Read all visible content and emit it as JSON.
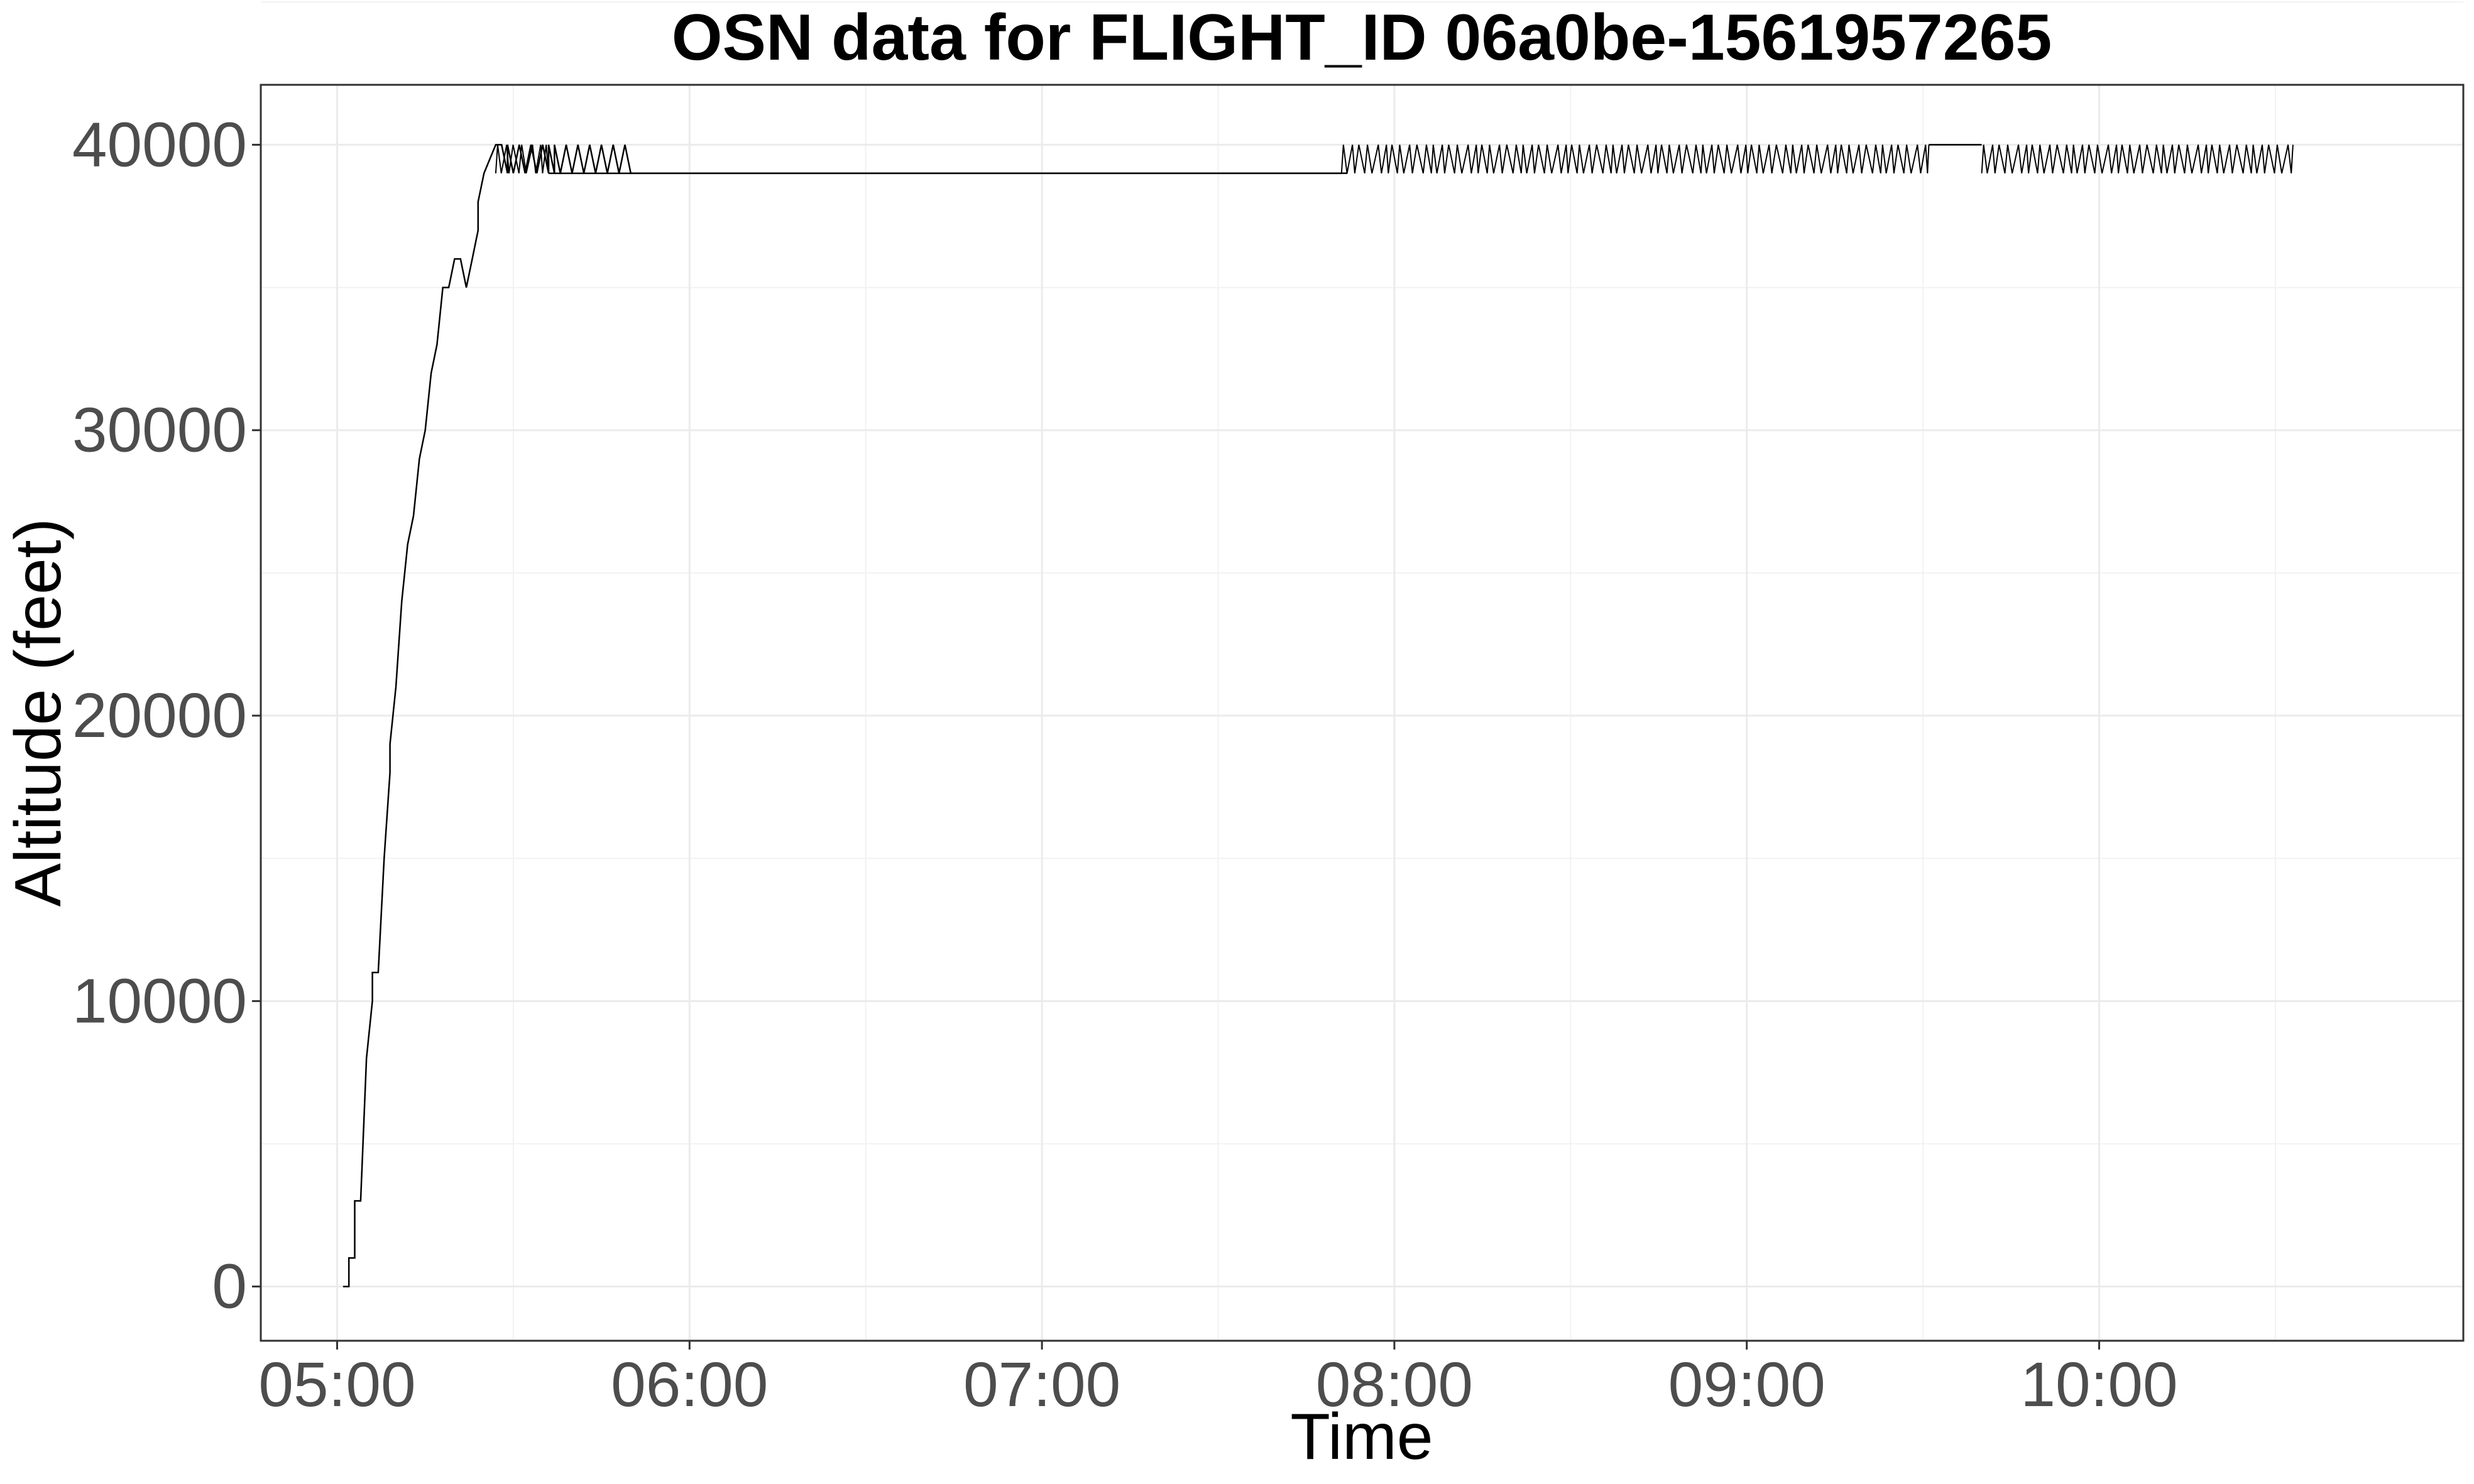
{
  "chart_data": {
    "type": "line",
    "title": "OSN data for FLIGHT_ID 06a0be-1561957265",
    "xlabel": "Time",
    "ylabel": "Altitude (feet)",
    "x_ticks": [
      "05:00",
      "06:00",
      "07:00",
      "08:00",
      "09:00",
      "10:00"
    ],
    "y_ticks": [
      "0",
      "10000",
      "20000",
      "30000",
      "40000"
    ],
    "xlim": [
      "04:47",
      "11:02"
    ],
    "ylim": [
      -1900,
      42100
    ],
    "grid": true,
    "legend": "none",
    "line_color": "#000000",
    "series": [
      {
        "x": [
          "05:01",
          "05:02",
          "05:02",
          "05:03",
          "05:03",
          "05:04",
          "05:05",
          "05:06",
          "05:06",
          "05:07",
          "05:08",
          "05:09",
          "05:09",
          "05:10",
          "05:11",
          "05:12",
          "05:13",
          "05:14",
          "05:15",
          "05:16",
          "05:17",
          "05:18",
          "05:19",
          "05:20",
          "05:21",
          "05:22",
          "05:22",
          "05:23",
          "05:24",
          "05:24",
          "05:25",
          "05:26",
          "05:27",
          "05:28",
          "05:29",
          "05:29",
          "05:30",
          "05:31",
          "05:32",
          "05:33",
          "05:34",
          "05:35",
          "05:36",
          "05:36",
          "05:37",
          "05:37",
          "05:38",
          "05:39",
          "05:40",
          "05:41",
          "05:42",
          "05:43",
          "05:44",
          "05:45",
          "05:46",
          "05:47",
          "05:48",
          "05:49",
          "05:50",
          "05:51",
          "05:52",
          "05:53",
          "05:54",
          "05:55",
          "05:56",
          "05:57",
          "05:58",
          "05:59",
          "06:00",
          "06:30",
          "07:00",
          "07:30",
          "07:51",
          "07:52"
        ],
        "y": [
          0,
          0,
          1000,
          1000,
          3000,
          3000,
          8000,
          10000,
          11000,
          11000,
          15000,
          18000,
          19000,
          21000,
          24000,
          26000,
          27000,
          29000,
          30000,
          32000,
          33000,
          35000,
          35000,
          36000,
          36000,
          35000,
          35000,
          36000,
          37000,
          38000,
          39000,
          39500,
          40000,
          40000,
          39000,
          40000,
          39000,
          40000,
          39000,
          40000,
          39000,
          40000,
          39000,
          40000,
          39000,
          40000,
          39000,
          40000,
          39000,
          40000,
          39000,
          40000,
          39000,
          40000,
          39000,
          40000,
          39000,
          40000,
          39000,
          39000,
          39000,
          39000,
          39000,
          39000,
          39000,
          39000,
          39000,
          39000,
          39000,
          39000,
          39000,
          39000,
          39000,
          39000
        ],
        "segments": [
          {
            "from": "05:36",
            "to": "05:37",
            "level": 39000
          },
          {
            "from": "05:37",
            "to": "07:51",
            "level": 39000
          }
        ]
      },
      {
        "oscillation_bands": [
          {
            "from": "05:27",
            "to": "05:36",
            "low": 39000,
            "high": 40000
          },
          {
            "from": "07:51",
            "to": "09:31",
            "low": 39000,
            "high": 40000
          },
          {
            "from": "09:31",
            "to": "09:40",
            "low": 40000,
            "high": 40000
          },
          {
            "from": "09:40",
            "to": "10:33",
            "low": 39000,
            "high": 40000
          }
        ]
      }
    ]
  }
}
